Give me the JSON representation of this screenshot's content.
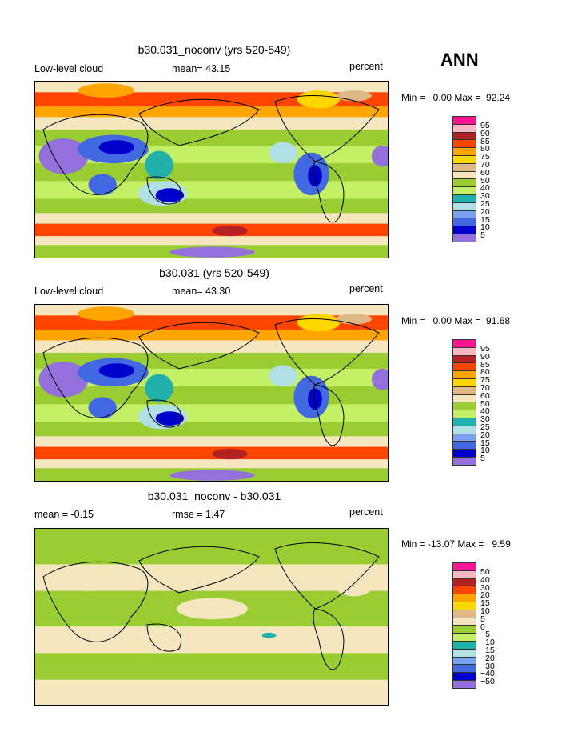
{
  "season": "ANN",
  "panels": [
    {
      "title": "b30.031_noconv (yrs 520-549)",
      "left_label": "Low-level cloud",
      "mean_label": "mean=  43.15",
      "units": "percent",
      "min_max": "Min =   0.00 Max =  92.24",
      "levels": [
        "95",
        "90",
        "85",
        "80",
        "75",
        "70",
        "60",
        "50",
        "40",
        "30",
        "25",
        "20",
        "15",
        "10",
        "5"
      ]
    },
    {
      "title": "b30.031 (yrs 520-549)",
      "left_label": "Low-level cloud",
      "mean_label": "mean=  43.30",
      "units": "percent",
      "min_max": "Min =   0.00 Max =  91.68",
      "levels": [
        "95",
        "90",
        "85",
        "80",
        "75",
        "70",
        "60",
        "50",
        "40",
        "30",
        "25",
        "20",
        "15",
        "10",
        "5"
      ]
    },
    {
      "title": "b30.031_noconv - b30.031",
      "left_label": "mean =  -0.15",
      "mean_label": "rmse =   1.47",
      "units": "percent",
      "min_max": "Min = -13.07 Max =   9.59",
      "levels": [
        "50",
        "40",
        "30",
        "20",
        "15",
        "10",
        "5",
        "0",
        "−5",
        "−10",
        "−15",
        "−20",
        "−30",
        "−40",
        "−50"
      ]
    }
  ],
  "colors": [
    "#ff1493",
    "#ffb6c1",
    "#b22222",
    "#ff4500",
    "#ffa500",
    "#ffd700",
    "#deb887",
    "#f5e6c0",
    "#9acd32",
    "#c3f064",
    "#20b2aa",
    "#b0e0e6",
    "#7aa0f0",
    "#4169e1",
    "#0000cd",
    "#9370db"
  ]
}
